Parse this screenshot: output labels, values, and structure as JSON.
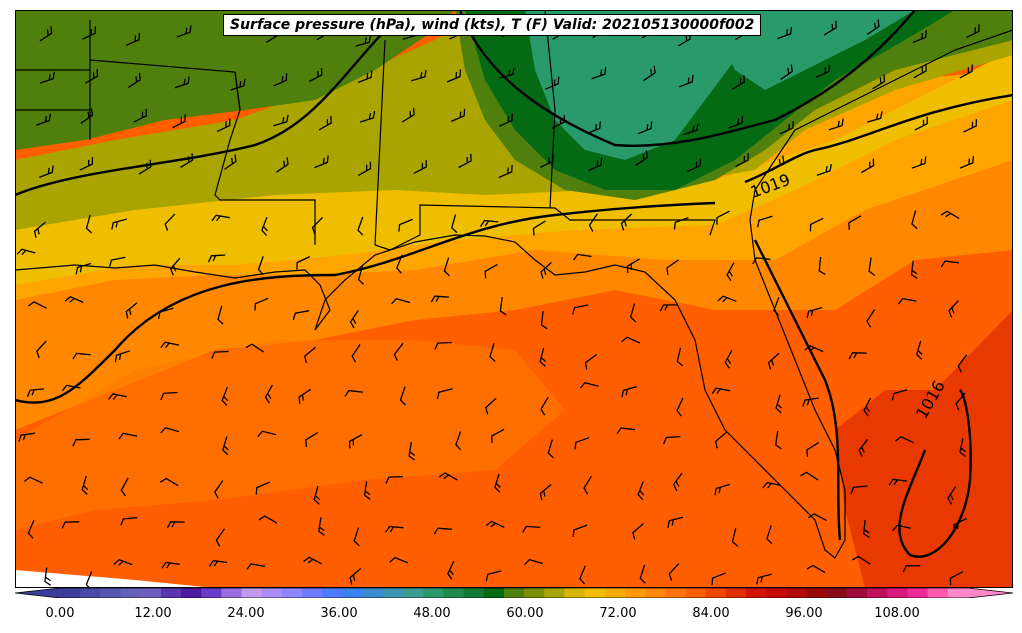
{
  "title": "Surface pressure (hPa), wind (kts), T (F) Valid: 202105130000f002",
  "isobar_labels": [
    {
      "text": "1019"
    },
    {
      "text": "1016"
    }
  ],
  "colorbar": {
    "tick_labels": [
      "0.00",
      "12.00",
      "24.00",
      "36.00",
      "48.00",
      "60.00",
      "72.00",
      "84.00",
      "96.00",
      "108.00"
    ],
    "colors": [
      "#3b3b9a",
      "#4a4aa6",
      "#5656b0",
      "#6262b8",
      "#6e5fbf",
      "#5b35b0",
      "#4a1aa0",
      "#6a3cc8",
      "#9a6ee0",
      "#c19af0",
      "#a98ef6",
      "#8f86ff",
      "#6f7cff",
      "#4f7cff",
      "#3c82f0",
      "#3a8ad0",
      "#3a95b0",
      "#3a9d90",
      "#2b9a6a",
      "#1f8a4c",
      "#127a33",
      "#056a14",
      "#4f7f0c",
      "#7b8f06",
      "#a9a400",
      "#d7b600",
      "#f0be00",
      "#f5ac00",
      "#ff9900",
      "#ff8800",
      "#ff7400",
      "#ff5f00",
      "#f04800",
      "#e02e00",
      "#d41400",
      "#c80a0a",
      "#b00a0a",
      "#9a0a0a",
      "#8a0a1a",
      "#a00a3a",
      "#c0105a",
      "#d81a7a",
      "#f02a98",
      "#ff5ab0",
      "#ff88c8"
    ]
  },
  "map_colors": {
    "dark_green": "#056a14",
    "teal_green": "#2b9a6a",
    "green": "#4f7f0c",
    "olive": "#a9a400",
    "yellow": "#f0be00",
    "orange_light": "#ffa500",
    "orange": "#ff8800",
    "orange_dark": "#ff5f00",
    "red_orange": "#e83a00"
  }
}
